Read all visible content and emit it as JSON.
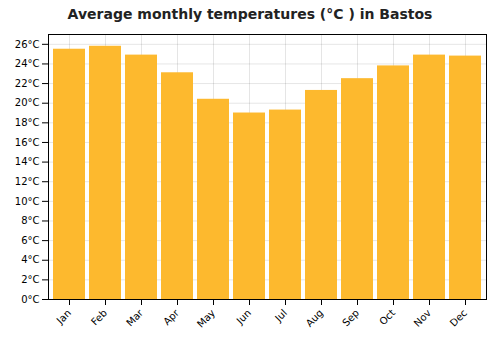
{
  "chart_data": {
    "type": "bar",
    "title": "Average monthly temperatures (°C ) in Bastos",
    "categories": [
      "Jan",
      "Feb",
      "Mar",
      "Apr",
      "May",
      "Jun",
      "Jul",
      "Aug",
      "Sep",
      "Oct",
      "Nov",
      "Dec"
    ],
    "values": [
      25.5,
      25.8,
      24.9,
      23.1,
      20.4,
      19.0,
      19.3,
      21.3,
      22.5,
      23.8,
      24.9,
      24.8
    ],
    "color": "#FDB92E",
    "ylim": [
      0,
      27
    ],
    "yticks": [
      {
        "value": 0,
        "label": "0°C"
      },
      {
        "value": 2,
        "label": "2°C"
      },
      {
        "value": 4,
        "label": "4°C"
      },
      {
        "value": 6,
        "label": "6°C"
      },
      {
        "value": 8,
        "label": "8°C"
      },
      {
        "value": 10,
        "label": "10°C"
      },
      {
        "value": 12,
        "label": "12°C"
      },
      {
        "value": 14,
        "label": "14°C"
      },
      {
        "value": 16,
        "label": "16°C"
      },
      {
        "value": 18,
        "label": "18°C"
      },
      {
        "value": 20,
        "label": "20°C"
      },
      {
        "value": 22,
        "label": "22°C"
      },
      {
        "value": 24,
        "label": "24°C"
      },
      {
        "value": 26,
        "label": "26°C"
      }
    ],
    "grid": true
  }
}
